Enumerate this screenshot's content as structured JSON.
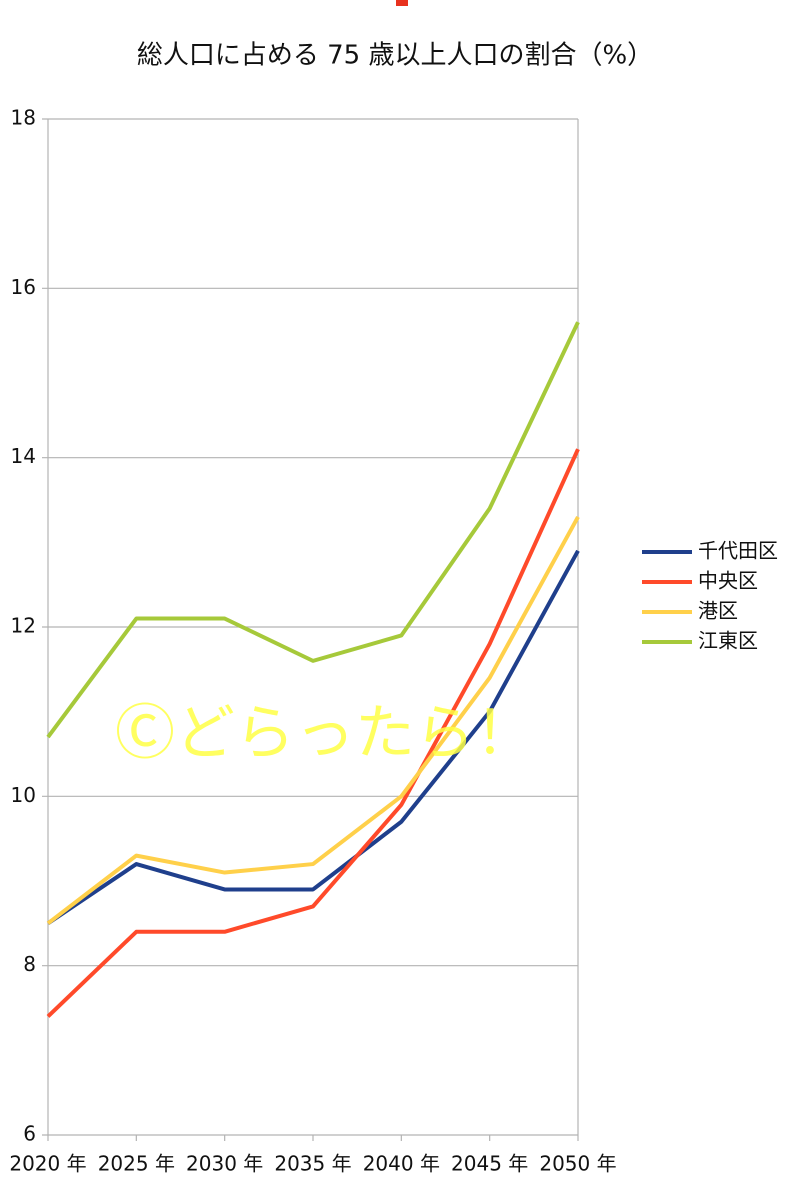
{
  "chart_data": {
    "type": "line",
    "title": "総人口に占める 75 歳以上人口の割合（%）",
    "annotation": "Ⓒどらったら！",
    "categories": [
      "2020 年",
      "2025 年",
      "2030 年",
      "2035 年",
      "2040 年",
      "2045 年",
      "2050 年"
    ],
    "series": [
      {
        "name": "千代田区",
        "color": "#1f3f8c",
        "values": [
          8.5,
          9.2,
          8.9,
          8.9,
          9.7,
          11.0,
          12.9
        ]
      },
      {
        "name": "中央区",
        "color": "#ff4a2a",
        "values": [
          7.4,
          8.4,
          8.4,
          8.7,
          9.9,
          11.8,
          14.1
        ]
      },
      {
        "name": "港区",
        "color": "#ffd04a",
        "values": [
          8.5,
          9.3,
          9.1,
          9.2,
          10.0,
          11.4,
          13.3
        ]
      },
      {
        "name": "江東区",
        "color": "#a6c93a",
        "values": [
          10.7,
          12.1,
          12.1,
          11.6,
          11.9,
          13.4,
          15.6
        ]
      }
    ],
    "ylim": [
      6,
      18
    ],
    "yticks": [
      6,
      8,
      10,
      12,
      14,
      16,
      18
    ],
    "grid": true,
    "legend": "right"
  }
}
